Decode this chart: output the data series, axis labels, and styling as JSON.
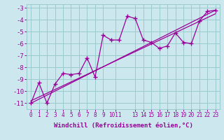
{
  "xlabel": "Windchill (Refroidissement éolien,°C)",
  "bg_color": "#cce8ee",
  "line_color": "#990099",
  "grid_color": "#99cccc",
  "scatter_x": [
    0,
    1,
    2,
    3,
    4,
    5,
    6,
    7,
    8,
    9,
    10,
    11,
    12,
    13,
    14,
    15,
    16,
    17,
    18,
    19,
    20,
    21,
    22,
    23
  ],
  "scatter_y": [
    -11.0,
    -9.3,
    -11.0,
    -9.4,
    -8.5,
    -8.6,
    -8.5,
    -7.2,
    -8.8,
    -5.3,
    -5.7,
    -5.7,
    -3.7,
    -3.9,
    -5.7,
    -5.9,
    -6.4,
    -6.2,
    -5.1,
    -5.9,
    -6.0,
    -4.1,
    -3.3,
    -3.2
  ],
  "trend1_x": [
    0,
    23
  ],
  "trend1_y": [
    -11.0,
    -3.2
  ],
  "trend2_x": [
    0,
    23
  ],
  "trend2_y": [
    -10.8,
    -3.5
  ],
  "xlim": [
    -0.5,
    23.5
  ],
  "ylim": [
    -11.5,
    -2.7
  ],
  "yticks": [
    -11,
    -10,
    -9,
    -8,
    -7,
    -6,
    -5,
    -4,
    -3
  ],
  "xtick_positions": [
    0,
    1,
    2,
    3,
    4,
    5,
    6,
    7,
    8,
    9,
    10.5,
    13,
    14,
    15,
    16,
    17,
    18,
    19,
    20,
    21,
    22,
    23
  ],
  "xtick_labels": [
    "0",
    "1",
    "2",
    "3",
    "4",
    "5",
    "6",
    "7",
    "8",
    "9",
    "1011",
    "13",
    "14",
    "15",
    "16",
    "17",
    "18",
    "19",
    "20",
    "21",
    "22",
    "23"
  ]
}
